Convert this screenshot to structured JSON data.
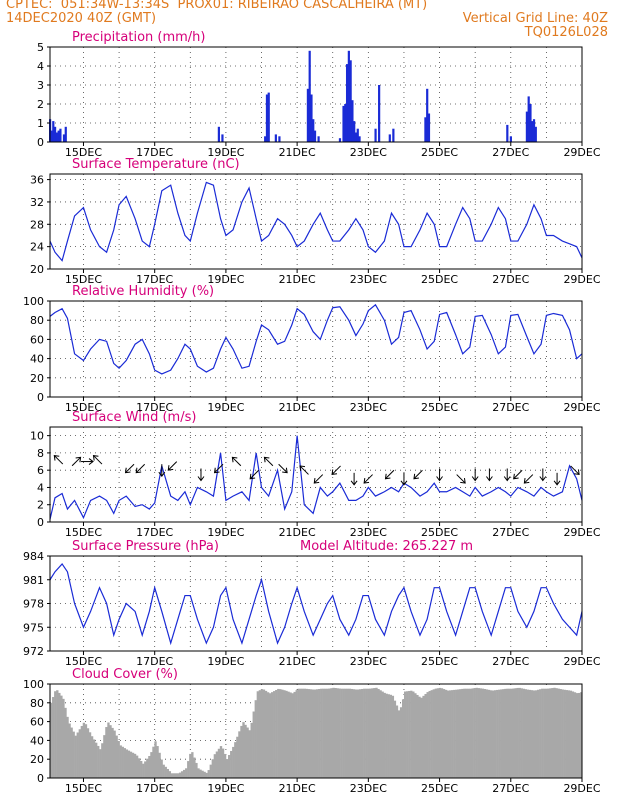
{
  "header": {
    "line1": "CPTEC:  051:34W-13:34S  PROX01: RIBEIRAO CASCALHEIRA (MT)",
    "line2_left": "14DEC2020 40Z (GMT)",
    "line2_right": "Vertical Grid Line: 40Z",
    "line3_right": "TQ0126L028"
  },
  "colors": {
    "header": "#e07a1f",
    "title": "#d6007a",
    "line": "#1a2bd6",
    "bar": "#1a2bd6",
    "cloud": "#a8a8a8"
  },
  "x_tick_labels": [
    "15DEC",
    "17DEC",
    "19DEC",
    "21DEC",
    "23DEC",
    "25DEC",
    "27DEC",
    "29DEC"
  ],
  "chart_data": [
    {
      "id": "precip",
      "type": "bar",
      "title": "Precipitation (mm/h)",
      "ylim": [
        0,
        5
      ],
      "yticks": [
        0,
        1,
        2,
        3,
        4,
        5
      ],
      "x_range_days": [
        14.06,
        29.0
      ],
      "x": [
        14.06,
        14.1,
        14.15,
        14.2,
        14.25,
        14.3,
        14.35,
        14.45,
        14.5,
        18.8,
        18.9,
        20.1,
        20.15,
        20.2,
        20.4,
        20.5,
        21.3,
        21.35,
        21.4,
        21.45,
        21.5,
        21.6,
        22.2,
        22.3,
        22.35,
        22.4,
        22.45,
        22.5,
        22.55,
        22.6,
        22.65,
        22.7,
        22.75,
        23.2,
        23.3,
        23.6,
        23.7,
        24.6,
        24.65,
        24.7,
        26.9,
        27.0,
        27.45,
        27.5,
        27.55,
        27.6,
        27.65,
        27.7
      ],
      "values": [
        1.2,
        0.6,
        1.1,
        0.8,
        0.5,
        0.6,
        0.7,
        0.4,
        0.8,
        0.8,
        0.4,
        0.3,
        2.5,
        2.6,
        0.4,
        0.3,
        2.8,
        4.8,
        2.5,
        1.2,
        0.6,
        0.3,
        0.2,
        1.9,
        2.0,
        4.1,
        4.8,
        4.3,
        2.2,
        1.1,
        0.5,
        0.7,
        0.3,
        0.7,
        3.0,
        0.4,
        0.7,
        1.3,
        2.8,
        1.5,
        0.9,
        0.3,
        1.6,
        2.4,
        2.0,
        1.1,
        1.2,
        0.8
      ]
    },
    {
      "id": "temp",
      "type": "line",
      "title": "Surface Temperature (nC)",
      "ylim": [
        20,
        37
      ],
      "yticks": [
        20,
        24,
        28,
        32,
        36
      ],
      "x_range_days": [
        14.06,
        29.0
      ],
      "x": [
        14.06,
        14.2,
        14.4,
        14.55,
        14.75,
        15.0,
        15.2,
        15.45,
        15.65,
        15.85,
        16.0,
        16.2,
        16.45,
        16.65,
        16.85,
        17.0,
        17.2,
        17.45,
        17.65,
        17.85,
        18.0,
        18.2,
        18.45,
        18.65,
        18.85,
        19.0,
        19.2,
        19.45,
        19.65,
        19.85,
        20.0,
        20.2,
        20.45,
        20.65,
        20.85,
        21.0,
        21.2,
        21.45,
        21.65,
        21.85,
        22.0,
        22.2,
        22.45,
        22.65,
        22.85,
        23.0,
        23.2,
        23.45,
        23.65,
        23.85,
        24.0,
        24.2,
        24.45,
        24.65,
        24.85,
        25.0,
        25.2,
        25.45,
        25.65,
        25.85,
        26.0,
        26.2,
        26.45,
        26.65,
        26.85,
        27.0,
        27.2,
        27.45,
        27.65,
        27.85,
        28.0,
        28.2,
        28.45,
        28.65,
        28.85,
        29.0
      ],
      "values": [
        25,
        23,
        21.5,
        25,
        29.5,
        31,
        27,
        24,
        23,
        27,
        31.5,
        33,
        29,
        25,
        24,
        28,
        34,
        35,
        30,
        26,
        25,
        30,
        35.5,
        35,
        29,
        26,
        27,
        32,
        34.5,
        29,
        25,
        26,
        29,
        28,
        26,
        24,
        25,
        28,
        30,
        27,
        25,
        25,
        27,
        29,
        27,
        24,
        23,
        25,
        30,
        28,
        24,
        24,
        27,
        30,
        28,
        24,
        24,
        28,
        31,
        29,
        25,
        25,
        28,
        31,
        29,
        25,
        25,
        28,
        31.5,
        29,
        26,
        26,
        25,
        24.5,
        24,
        22
      ]
    },
    {
      "id": "rh",
      "type": "line",
      "title": "Relative Humidity (%)",
      "ylim": [
        0,
        100
      ],
      "yticks": [
        0,
        20,
        40,
        60,
        80,
        100
      ],
      "x_range_days": [
        14.06,
        29.0
      ],
      "x": [
        14.06,
        14.2,
        14.4,
        14.55,
        14.75,
        15.0,
        15.2,
        15.45,
        15.65,
        15.85,
        16.0,
        16.2,
        16.45,
        16.65,
        16.85,
        17.0,
        17.2,
        17.45,
        17.65,
        17.85,
        18.0,
        18.2,
        18.45,
        18.65,
        18.85,
        19.0,
        19.2,
        19.45,
        19.65,
        19.85,
        20.0,
        20.2,
        20.45,
        20.65,
        20.85,
        21.0,
        21.2,
        21.45,
        21.65,
        21.85,
        22.0,
        22.2,
        22.45,
        22.65,
        22.85,
        23.0,
        23.2,
        23.45,
        23.65,
        23.85,
        24.0,
        24.2,
        24.45,
        24.65,
        24.85,
        25.0,
        25.2,
        25.45,
        25.65,
        25.85,
        26.0,
        26.2,
        26.45,
        26.65,
        26.85,
        27.0,
        27.2,
        27.45,
        27.65,
        27.85,
        28.0,
        28.2,
        28.45,
        28.65,
        28.85,
        29.0
      ],
      "values": [
        84,
        88,
        92,
        82,
        45,
        38,
        50,
        60,
        58,
        35,
        30,
        38,
        55,
        60,
        45,
        28,
        24,
        28,
        40,
        55,
        50,
        32,
        26,
        30,
        50,
        62,
        50,
        30,
        32,
        58,
        75,
        70,
        55,
        58,
        75,
        92,
        86,
        68,
        60,
        80,
        93,
        94,
        80,
        64,
        76,
        90,
        96,
        80,
        55,
        62,
        88,
        90,
        70,
        50,
        58,
        86,
        88,
        65,
        45,
        52,
        84,
        85,
        65,
        45,
        52,
        85,
        86,
        63,
        45,
        55,
        85,
        87,
        85,
        70,
        40,
        45
      ]
    },
    {
      "id": "wind",
      "type": "line",
      "title": "Surface Wind (m/s)",
      "ylim": [
        0,
        11
      ],
      "yticks": [
        0,
        2,
        4,
        6,
        8,
        10
      ],
      "x_range_days": [
        14.06,
        29.0
      ],
      "x": [
        14.06,
        14.2,
        14.4,
        14.55,
        14.75,
        15.0,
        15.2,
        15.45,
        15.65,
        15.85,
        16.0,
        16.2,
        16.45,
        16.65,
        16.85,
        17.0,
        17.2,
        17.45,
        17.65,
        17.85,
        18.0,
        18.2,
        18.45,
        18.65,
        18.85,
        19.0,
        19.2,
        19.45,
        19.65,
        19.85,
        20.0,
        20.2,
        20.45,
        20.65,
        20.85,
        21.0,
        21.2,
        21.45,
        21.65,
        21.85,
        22.0,
        22.2,
        22.45,
        22.65,
        22.85,
        23.0,
        23.2,
        23.45,
        23.65,
        23.85,
        24.0,
        24.2,
        24.45,
        24.65,
        24.85,
        25.0,
        25.2,
        25.45,
        25.65,
        25.85,
        26.0,
        26.2,
        26.45,
        26.65,
        26.85,
        27.0,
        27.2,
        27.45,
        27.65,
        27.85,
        28.0,
        28.2,
        28.45,
        28.65,
        28.85,
        29.0
      ],
      "values": [
        0.3,
        2.8,
        3.3,
        1.5,
        2.5,
        0.5,
        2.5,
        3.0,
        2.5,
        1.0,
        2.5,
        3.0,
        1.8,
        2.0,
        1.5,
        2.2,
        6.5,
        3.0,
        2.5,
        3.5,
        2.0,
        4.0,
        3.5,
        3.0,
        8.0,
        2.5,
        3.0,
        3.5,
        2.5,
        8.0,
        4.0,
        3.0,
        6.0,
        1.5,
        3.5,
        10.0,
        2.0,
        1.0,
        4.0,
        3.0,
        3.5,
        4.5,
        2.5,
        2.5,
        3.0,
        4.0,
        3.0,
        3.5,
        4.0,
        3.5,
        4.5,
        4.0,
        3.0,
        3.5,
        4.5,
        3.5,
        3.5,
        4.0,
        3.5,
        3.0,
        4.0,
        3.0,
        3.5,
        4.0,
        3.5,
        3.0,
        4.0,
        3.5,
        3.0,
        4.0,
        3.5,
        3.0,
        3.5,
        6.5,
        5.0,
        2.5
      ]
    },
    {
      "id": "pres",
      "type": "line",
      "title": "Surface Pressure (hPa)",
      "subtitle": "Model Altitude: 265.227 m",
      "ylim": [
        972,
        984
      ],
      "yticks": [
        972,
        975,
        978,
        981,
        984
      ],
      "x_range_days": [
        14.06,
        29.0
      ],
      "x": [
        14.06,
        14.2,
        14.4,
        14.55,
        14.75,
        15.0,
        15.2,
        15.45,
        15.65,
        15.85,
        16.0,
        16.2,
        16.45,
        16.65,
        16.85,
        17.0,
        17.2,
        17.45,
        17.65,
        17.85,
        18.0,
        18.2,
        18.45,
        18.65,
        18.85,
        19.0,
        19.2,
        19.45,
        19.65,
        19.85,
        20.0,
        20.2,
        20.45,
        20.65,
        20.85,
        21.0,
        21.2,
        21.45,
        21.65,
        21.85,
        22.0,
        22.2,
        22.45,
        22.65,
        22.85,
        23.0,
        23.2,
        23.45,
        23.65,
        23.85,
        24.0,
        24.2,
        24.45,
        24.65,
        24.85,
        25.0,
        25.2,
        25.45,
        25.65,
        25.85,
        26.0,
        26.2,
        26.45,
        26.65,
        26.85,
        27.0,
        27.2,
        27.45,
        27.65,
        27.85,
        28.0,
        28.2,
        28.45,
        28.65,
        28.85,
        29.0
      ],
      "values": [
        981,
        982,
        983,
        982,
        978,
        975,
        977,
        980,
        978,
        974,
        976,
        978,
        977,
        974,
        977,
        980,
        977,
        973,
        976,
        979,
        979,
        976,
        973,
        975,
        979,
        980,
        976,
        973,
        976,
        979,
        981,
        977,
        973,
        975,
        978,
        980,
        977,
        974,
        976,
        978,
        979,
        976,
        974,
        976,
        979,
        979,
        976,
        974,
        977,
        979,
        980,
        977,
        974,
        976,
        980,
        980,
        977,
        974,
        977,
        980,
        980,
        977,
        974,
        977,
        980,
        980,
        977,
        975,
        977,
        980,
        980,
        978,
        976,
        975,
        974,
        977
      ]
    },
    {
      "id": "cloud",
      "type": "area",
      "title": "Cloud Cover (%)",
      "ylim": [
        0,
        100
      ],
      "yticks": [
        0,
        20,
        40,
        60,
        80,
        100
      ],
      "x_range_days": [
        14.06,
        29.0
      ],
      "x": [
        14.06,
        14.2,
        14.4,
        14.55,
        14.75,
        15.0,
        15.2,
        15.45,
        15.65,
        15.85,
        16.0,
        16.2,
        16.45,
        16.65,
        16.85,
        17.0,
        17.2,
        17.45,
        17.65,
        17.85,
        18.0,
        18.2,
        18.45,
        18.65,
        18.85,
        19.0,
        19.2,
        19.45,
        19.65,
        19.85,
        20.0,
        20.2,
        20.45,
        20.65,
        20.85,
        21.0,
        21.2,
        21.45,
        21.65,
        21.85,
        22.0,
        22.2,
        22.45,
        22.65,
        22.85,
        23.0,
        23.2,
        23.45,
        23.65,
        23.85,
        24.0,
        24.2,
        24.45,
        24.65,
        24.85,
        25.0,
        25.2,
        25.45,
        25.65,
        25.85,
        26.0,
        26.2,
        26.45,
        26.65,
        26.85,
        27.0,
        27.2,
        27.45,
        27.65,
        27.85,
        28.0,
        28.2,
        28.45,
        28.65,
        28.85,
        29.0
      ],
      "values": [
        80,
        95,
        85,
        60,
        45,
        60,
        45,
        30,
        60,
        50,
        35,
        30,
        25,
        15,
        25,
        40,
        15,
        5,
        5,
        10,
        30,
        10,
        5,
        25,
        35,
        20,
        35,
        60,
        50,
        92,
        95,
        90,
        95,
        93,
        90,
        95,
        95,
        94,
        95,
        95,
        96,
        95,
        95,
        94,
        95,
        95,
        96,
        90,
        88,
        70,
        92,
        93,
        85,
        92,
        95,
        96,
        93,
        94,
        95,
        95,
        96,
        95,
        93,
        94,
        95,
        95,
        96,
        94,
        93,
        95,
        95,
        96,
        94,
        93,
        90,
        92
      ]
    }
  ],
  "wind_arrows": [
    {
      "x": 14.3,
      "y": 7.2,
      "dir": 315
    },
    {
      "x": 14.8,
      "y": 7.0,
      "dir": 45
    },
    {
      "x": 15.1,
      "y": 7.0,
      "dir": 90
    },
    {
      "x": 15.4,
      "y": 7.2,
      "dir": 315
    },
    {
      "x": 16.3,
      "y": 6.2,
      "dir": 225
    },
    {
      "x": 16.6,
      "y": 6.2,
      "dir": 225
    },
    {
      "x": 17.2,
      "y": 6.0,
      "dir": 180
    },
    {
      "x": 17.5,
      "y": 6.5,
      "dir": 225
    },
    {
      "x": 18.3,
      "y": 5.5,
      "dir": 180
    },
    {
      "x": 18.8,
      "y": 6.2,
      "dir": 225
    },
    {
      "x": 19.3,
      "y": 7.0,
      "dir": 315
    },
    {
      "x": 19.8,
      "y": 5.5,
      "dir": 225
    },
    {
      "x": 20.2,
      "y": 7.0,
      "dir": 315
    },
    {
      "x": 20.6,
      "y": 6.2,
      "dir": 135
    },
    {
      "x": 21.2,
      "y": 6.0,
      "dir": 315
    },
    {
      "x": 21.6,
      "y": 5.0,
      "dir": 225
    },
    {
      "x": 22.1,
      "y": 6.0,
      "dir": 225
    },
    {
      "x": 22.6,
      "y": 5.0,
      "dir": 180
    },
    {
      "x": 23.0,
      "y": 5.0,
      "dir": 225
    },
    {
      "x": 23.6,
      "y": 5.5,
      "dir": 225
    },
    {
      "x": 24.0,
      "y": 5.0,
      "dir": 180
    },
    {
      "x": 24.4,
      "y": 5.5,
      "dir": 225
    },
    {
      "x": 25.0,
      "y": 5.5,
      "dir": 180
    },
    {
      "x": 25.6,
      "y": 5.0,
      "dir": 135
    },
    {
      "x": 26.0,
      "y": 5.5,
      "dir": 180
    },
    {
      "x": 26.4,
      "y": 5.5,
      "dir": 180
    },
    {
      "x": 26.9,
      "y": 5.5,
      "dir": 180
    },
    {
      "x": 27.2,
      "y": 5.5,
      "dir": 225
    },
    {
      "x": 27.5,
      "y": 5.0,
      "dir": 225
    },
    {
      "x": 27.9,
      "y": 5.5,
      "dir": 180
    },
    {
      "x": 28.3,
      "y": 5.0,
      "dir": 180
    },
    {
      "x": 28.8,
      "y": 6.0,
      "dir": 135
    }
  ]
}
